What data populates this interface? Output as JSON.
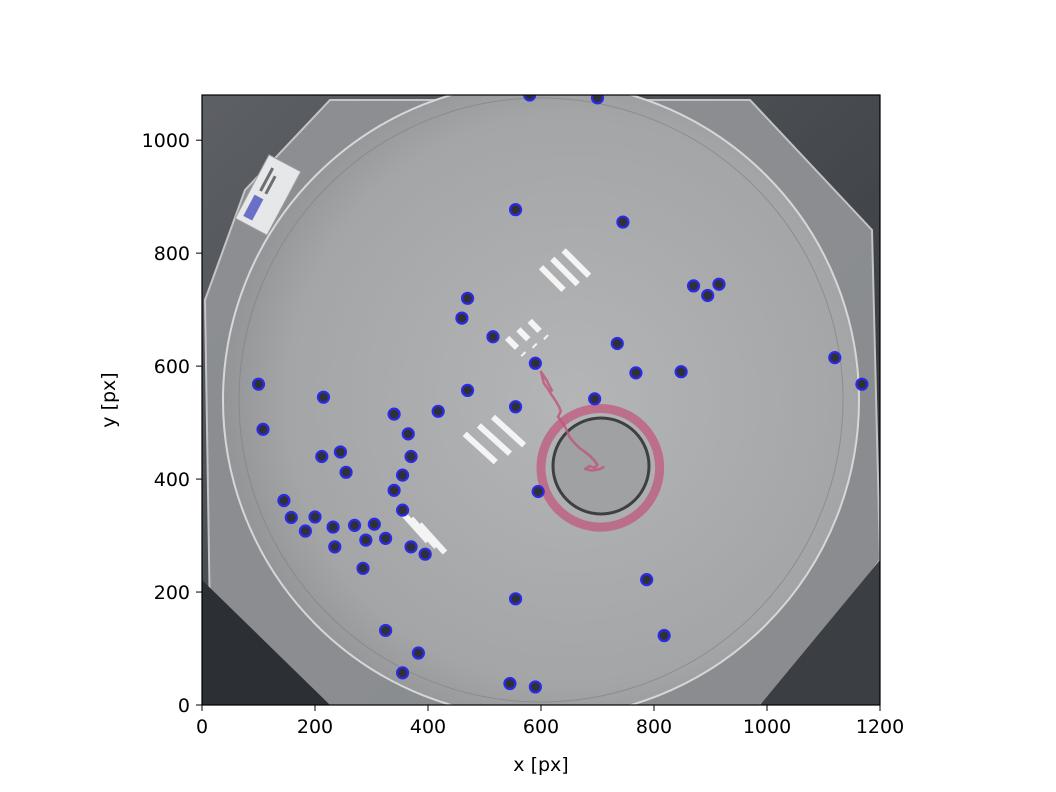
{
  "chart_data": {
    "type": "scatter",
    "title": "",
    "xlabel": "x [px]",
    "ylabel": "y [px]",
    "xlim": [
      0,
      1200
    ],
    "ylim": [
      0,
      1080
    ],
    "xticks": [
      0,
      200,
      400,
      600,
      800,
      1000,
      1200
    ],
    "yticks": [
      0,
      200,
      400,
      600,
      800,
      1000
    ],
    "grid": false,
    "background": "grayscale arena photograph",
    "arena": {
      "center": [
        600,
        540
      ],
      "radius": 560
    },
    "stripe_groups": [
      {
        "x": [
          0,
          1,
          2
        ],
        "note": ""
      }
    ],
    "target_ring": {
      "center": [
        705,
        420
      ],
      "radius": 105,
      "color": "#c0587e"
    },
    "tracked_points": {
      "color": "#2a2ae8",
      "points": [
        [
          700,
          1075
        ],
        [
          580,
          1080
        ],
        [
          555,
          877
        ],
        [
          745,
          855
        ],
        [
          470,
          720
        ],
        [
          870,
          742
        ],
        [
          915,
          745
        ],
        [
          895,
          725
        ],
        [
          460,
          685
        ],
        [
          515,
          652
        ],
        [
          735,
          640
        ],
        [
          590,
          605
        ],
        [
          768,
          588
        ],
        [
          848,
          590
        ],
        [
          1120,
          615
        ],
        [
          1168,
          568
        ],
        [
          100,
          568
        ],
        [
          215,
          545
        ],
        [
          470,
          557
        ],
        [
          695,
          542
        ],
        [
          555,
          528
        ],
        [
          418,
          520
        ],
        [
          340,
          515
        ],
        [
          108,
          488
        ],
        [
          365,
          480
        ],
        [
          245,
          448
        ],
        [
          212,
          440
        ],
        [
          370,
          440
        ],
        [
          255,
          412
        ],
        [
          355,
          407
        ],
        [
          340,
          380
        ],
        [
          595,
          378
        ],
        [
          145,
          362
        ],
        [
          355,
          345
        ],
        [
          158,
          332
        ],
        [
          200,
          333
        ],
        [
          232,
          315
        ],
        [
          270,
          318
        ],
        [
          305,
          320
        ],
        [
          183,
          308
        ],
        [
          290,
          292
        ],
        [
          325,
          295
        ],
        [
          235,
          280
        ],
        [
          370,
          280
        ],
        [
          395,
          267
        ],
        [
          285,
          242
        ],
        [
          787,
          222
        ],
        [
          555,
          188
        ],
        [
          818,
          123
        ],
        [
          325,
          132
        ],
        [
          383,
          92
        ],
        [
          355,
          57
        ],
        [
          545,
          38
        ],
        [
          590,
          32
        ]
      ]
    },
    "trajectory": {
      "color": "#c0587e",
      "points": [
        [
          620,
          555
        ],
        [
          610,
          575
        ],
        [
          600,
          590
        ],
        [
          605,
          570
        ],
        [
          612,
          560
        ],
        [
          618,
          550
        ],
        [
          625,
          540
        ],
        [
          632,
          528
        ],
        [
          635,
          520
        ],
        [
          630,
          510
        ],
        [
          638,
          500
        ],
        [
          645,
          488
        ],
        [
          650,
          475
        ],
        [
          658,
          465
        ],
        [
          668,
          455
        ],
        [
          678,
          448
        ],
        [
          688,
          440
        ],
        [
          695,
          432
        ],
        [
          700,
          425
        ],
        [
          695,
          420
        ],
        [
          686,
          423
        ],
        [
          678,
          418
        ],
        [
          690,
          415
        ],
        [
          705,
          418
        ],
        [
          712,
          422
        ]
      ]
    }
  }
}
